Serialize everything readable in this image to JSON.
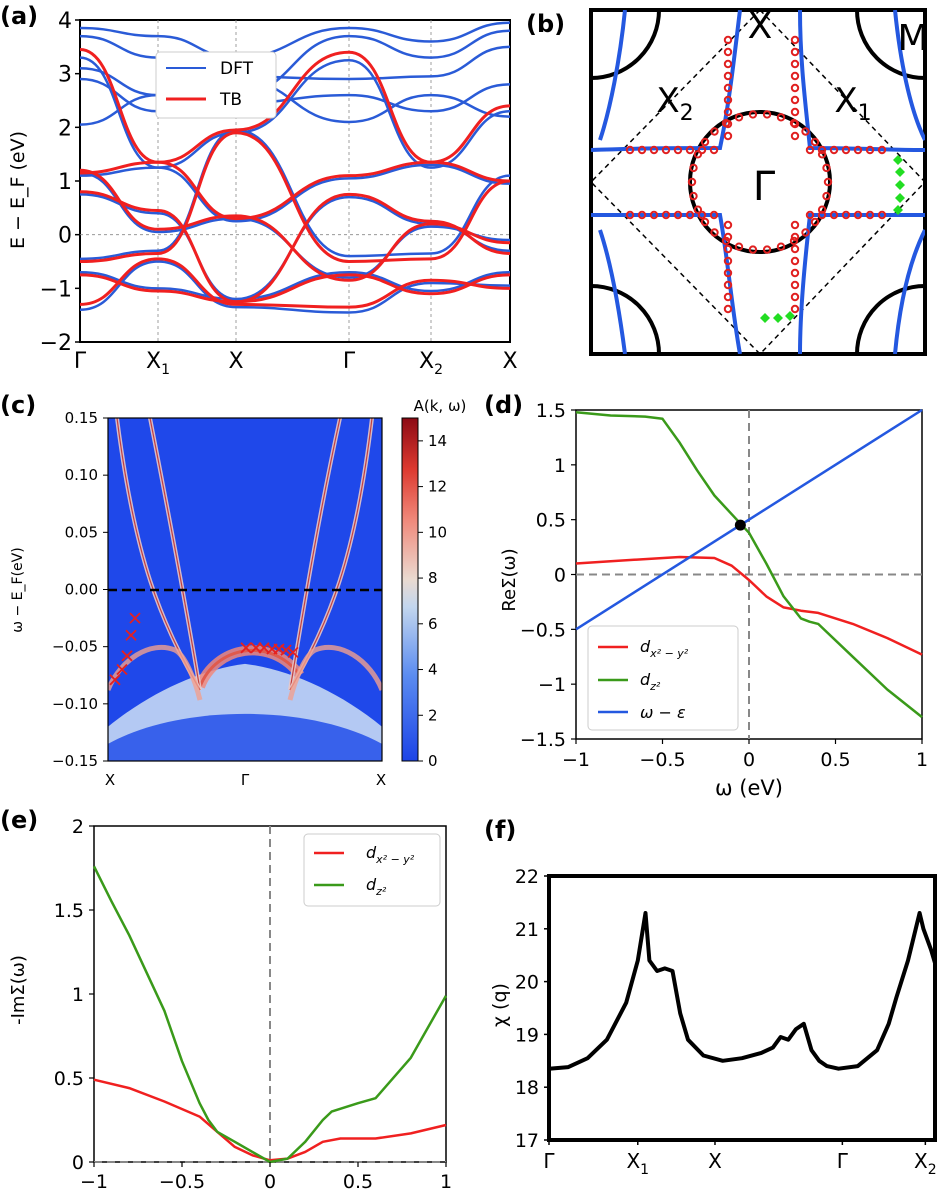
{
  "panels": {
    "a": {
      "label": "(a)"
    },
    "b": {
      "label": "(b)"
    },
    "c": {
      "label": "(c)"
    },
    "d": {
      "label": "(d)"
    },
    "e": {
      "label": "(e)"
    },
    "f": {
      "label": "(f)"
    }
  },
  "colors": {
    "dft": "#2a5bd7",
    "tb": "#f02020",
    "green": "#3a9a1a",
    "blue_line": "#2458e0",
    "black": "#000000",
    "grid": "#888888",
    "marker_red": "#e02020",
    "marker_green": "#22dd22"
  },
  "chart_data": [
    {
      "id": "a",
      "type": "line",
      "ylabel": "E − E_F (eV)",
      "xticklabels": [
        "Γ",
        "X1",
        "X",
        "Γ",
        "X2",
        "X"
      ],
      "yticklabels": [
        "−2",
        "−1",
        "0",
        "1",
        "2",
        "3",
        "4"
      ],
      "ylim": [
        -2,
        4
      ],
      "legend": {
        "position": "top-left",
        "entries": [
          "DFT",
          "TB"
        ]
      },
      "series_note": "band structure, DFT (blue) vs tight-binding (red)"
    },
    {
      "id": "b",
      "type": "line",
      "labels": [
        "X",
        "M",
        "X2",
        "X1",
        "Γ"
      ],
      "series_note": "Fermi surface in Brillouin zone"
    },
    {
      "id": "c",
      "type": "heatmap",
      "ylabel": "ω − E_F(eV)",
      "xticklabels": [
        "X",
        "Γ",
        "X"
      ],
      "yticklabels": [
        "0.15",
        "0.10",
        "0.05",
        "0.00",
        "−0.05",
        "−0.10",
        "−0.15"
      ],
      "ylim": [
        -0.15,
        0.15
      ],
      "colorbar": {
        "label": "A(k, ω)",
        "ticks": [
          "0",
          "2",
          "4",
          "6",
          "8",
          "10",
          "12",
          "14"
        ],
        "range": [
          0,
          15
        ]
      }
    },
    {
      "id": "d",
      "type": "line",
      "xlabel": "ω (eV)",
      "ylabel": "ReΣ(ω)",
      "xlim": [
        -1,
        1
      ],
      "ylim": [
        -1.5,
        1.5
      ],
      "xticklabels": [
        "−1",
        "−0.5",
        "0",
        "0.5",
        "1"
      ],
      "yticklabels": [
        "1.5",
        "1",
        "0.5",
        "0",
        "−0.5",
        "−1",
        "−1.5"
      ],
      "legend": {
        "position": "bottom-left",
        "entries": [
          "d_{x²−y²}",
          "d_{z²}",
          "ω − ε"
        ]
      },
      "series": [
        {
          "name": "d_{x²−y²}",
          "x": [
            -1,
            -0.8,
            -0.6,
            -0.4,
            -0.2,
            -0.1,
            0,
            0.1,
            0.2,
            0.3,
            0.4,
            0.6,
            0.8,
            1
          ],
          "y": [
            0.1,
            0.12,
            0.14,
            0.16,
            0.15,
            0.08,
            -0.05,
            -0.2,
            -0.3,
            -0.33,
            -0.35,
            -0.45,
            -0.58,
            -0.73
          ]
        },
        {
          "name": "d_{z²}",
          "x": [
            -1,
            -0.8,
            -0.6,
            -0.5,
            -0.4,
            -0.3,
            -0.2,
            -0.1,
            0,
            0.1,
            0.2,
            0.3,
            0.35,
            0.4,
            0.6,
            0.8,
            1
          ],
          "y": [
            1.48,
            1.45,
            1.44,
            1.42,
            1.2,
            0.95,
            0.72,
            0.55,
            0.38,
            0.1,
            -0.2,
            -0.4,
            -0.43,
            -0.45,
            -0.75,
            -1.05,
            -1.3
          ]
        },
        {
          "name": "ω − ε",
          "x": [
            -1,
            1
          ],
          "y": [
            -0.5,
            1.5
          ]
        }
      ],
      "point": {
        "x": -0.05,
        "y": 0.45
      }
    },
    {
      "id": "e",
      "type": "line",
      "ylabel": "-ImΣ(ω)",
      "xlim": [
        -1,
        1
      ],
      "ylim": [
        0,
        2
      ],
      "xticklabels": [
        "−1",
        "−0.5",
        "0",
        "0.5",
        "1"
      ],
      "yticklabels": [
        "2",
        "1.5",
        "1",
        "0.5",
        "0"
      ],
      "legend": {
        "position": "top-right",
        "entries": [
          "d_{x²−y²}",
          "d_{z²}"
        ]
      },
      "series": [
        {
          "name": "d_{x²−y²}",
          "x": [
            -1,
            -0.8,
            -0.6,
            -0.4,
            -0.3,
            -0.2,
            -0.1,
            0,
            0.1,
            0.2,
            0.3,
            0.4,
            0.6,
            0.8,
            1
          ],
          "y": [
            0.49,
            0.44,
            0.36,
            0.27,
            0.18,
            0.09,
            0.04,
            0.01,
            0.02,
            0.06,
            0.12,
            0.14,
            0.14,
            0.17,
            0.22
          ]
        },
        {
          "name": "d_{z²}",
          "x": [
            -1,
            -0.9,
            -0.8,
            -0.6,
            -0.5,
            -0.4,
            -0.35,
            -0.3,
            -0.2,
            -0.1,
            0,
            0.1,
            0.2,
            0.3,
            0.35,
            0.5,
            0.6,
            0.8,
            1
          ],
          "y": [
            1.76,
            1.55,
            1.35,
            0.9,
            0.6,
            0.35,
            0.25,
            0.18,
            0.12,
            0.06,
            0.0,
            0.02,
            0.12,
            0.25,
            0.3,
            0.35,
            0.38,
            0.62,
            0.99
          ]
        }
      ]
    },
    {
      "id": "f",
      "type": "line",
      "ylabel": "χ (q)",
      "ylim": [
        17,
        22
      ],
      "xticklabels": [
        "Γ",
        "X1",
        "X",
        "Γ",
        "X2"
      ],
      "yticklabels": [
        "22",
        "21",
        "20",
        "19",
        "18",
        "17"
      ],
      "series": [
        {
          "name": "",
          "x": [
            0,
            0.05,
            0.1,
            0.15,
            0.2,
            0.23,
            0.25,
            0.26,
            0.28,
            0.3,
            0.32,
            0.34,
            0.36,
            0.4,
            0.45,
            0.5,
            0.55,
            0.58,
            0.6,
            0.62,
            0.64,
            0.66,
            0.68,
            0.7,
            0.72,
            0.75,
            0.8,
            0.85,
            0.88,
            0.9,
            0.93,
            0.96,
            0.97,
            0.99,
            1.0
          ],
          "y": [
            18.35,
            18.38,
            18.55,
            18.9,
            19.6,
            20.4,
            21.3,
            20.4,
            20.2,
            20.25,
            20.2,
            19.4,
            18.9,
            18.6,
            18.5,
            18.55,
            18.65,
            18.75,
            18.95,
            18.9,
            19.1,
            19.2,
            18.7,
            18.5,
            18.4,
            18.35,
            18.4,
            18.7,
            19.2,
            19.7,
            20.4,
            21.3,
            21.0,
            20.6,
            20.35
          ]
        }
      ]
    }
  ]
}
